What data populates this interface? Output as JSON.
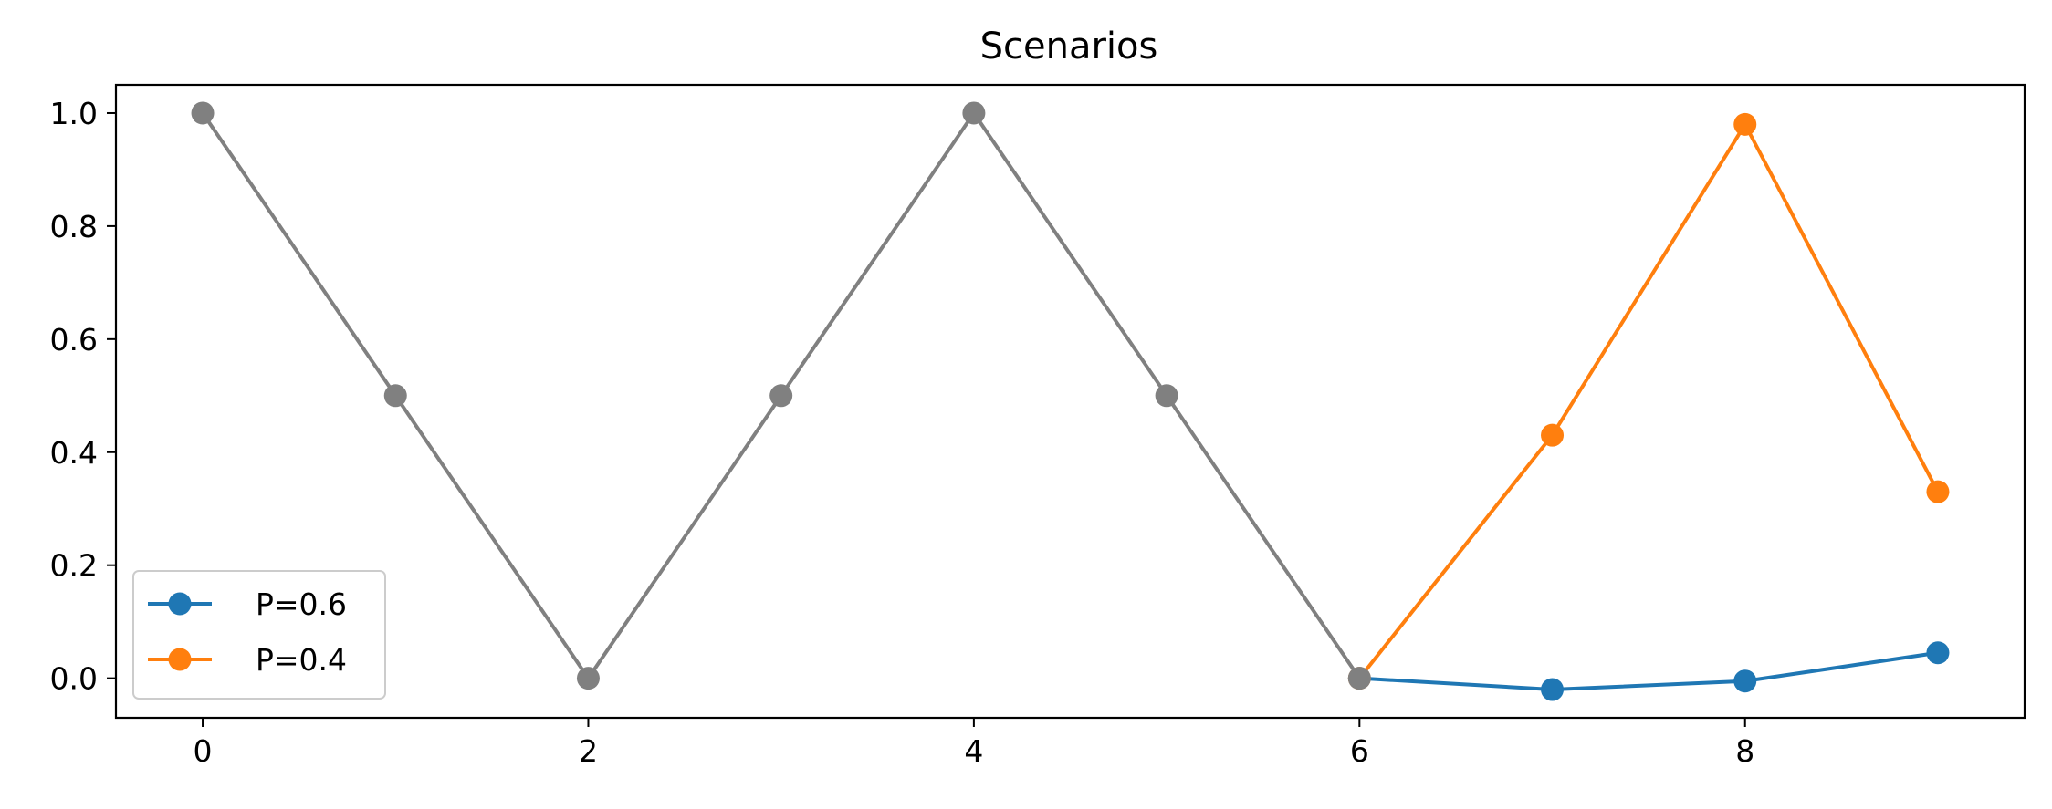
{
  "chart_data": {
    "type": "line",
    "title": "Scenarios",
    "xlabel": "",
    "ylabel": "",
    "xlim": [
      -0.45,
      9.45
    ],
    "ylim": [
      -0.07,
      1.05
    ],
    "x_ticks": [
      0,
      2,
      4,
      6,
      8
    ],
    "x_tick_labels": [
      "0",
      "2",
      "4",
      "6",
      "8"
    ],
    "y_ticks": [
      0.0,
      0.2,
      0.4,
      0.6,
      0.8,
      1.0
    ],
    "y_tick_labels": [
      "0.0",
      "0.2",
      "0.4",
      "0.6",
      "0.8",
      "1.0"
    ],
    "grid": false,
    "legend_position": "lower-left",
    "history": {
      "color": "#808080",
      "x": [
        0,
        1,
        2,
        3,
        4,
        5,
        6
      ],
      "y": [
        1.0,
        0.5,
        0.0,
        0.5,
        1.0,
        0.5,
        0.0
      ]
    },
    "series": [
      {
        "name": "P=0.6",
        "color": "#1f77b4",
        "x": [
          6,
          7,
          8,
          9
        ],
        "y": [
          0.0,
          -0.02,
          -0.005,
          0.045
        ]
      },
      {
        "name": "P=0.4",
        "color": "#ff7f0e",
        "x": [
          6,
          7,
          8,
          9
        ],
        "y": [
          0.0,
          0.43,
          0.98,
          0.33
        ]
      }
    ]
  }
}
